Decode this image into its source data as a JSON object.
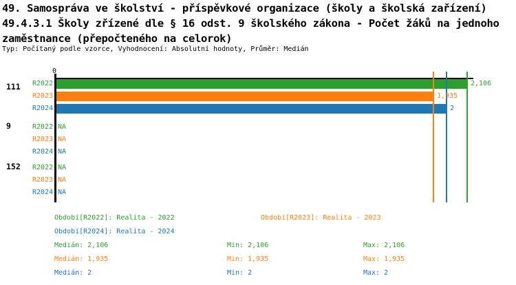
{
  "title": {
    "line1": "49. Samospráva ve školství - příspěvkové organizace (školy a školská zařízení)",
    "line2": "49.4.3.1 Školy zřízené dle § 16 odst. 9 školského zákona - Počet žáků na jednoho",
    "line3": "zaměstnance (přepočteného na celorok)",
    "subtitle": "Typ: Počítaný podle vzorce, Vyhodnocení: Absolutní hodnoty, Průměr: Medián"
  },
  "colors": {
    "green": "#2ca02c",
    "orange": "#ff7f0e",
    "blue": "#1f77b4",
    "axis": "#000000",
    "background": "#ffffff"
  },
  "chart_data": {
    "type": "bar",
    "orientation": "horizontal",
    "xaxis": {
      "zero_label": "0",
      "xlim": [
        0,
        2.14
      ],
      "decimal_separator": "comma"
    },
    "series": [
      {
        "name": "R2022",
        "color": "#2ca02c",
        "period": "Realita - 2022",
        "median": 2.106,
        "min": 2.106,
        "max": 2.106
      },
      {
        "name": "R2023",
        "color": "#ff7f0e",
        "period": "Realita - 2023",
        "median": 1.935,
        "min": 1.935,
        "max": 1.935
      },
      {
        "name": "R2024",
        "color": "#1f77b4",
        "period": "Realita - 2024",
        "median": 2.0,
        "min": 2.0,
        "max": 2.0
      }
    ],
    "groups": [
      {
        "label": "111",
        "values": [
          {
            "series": "R2022",
            "value": 2.106,
            "display": "2,106"
          },
          {
            "series": "R2023",
            "value": 1.935,
            "display": "1,935"
          },
          {
            "series": "R2024",
            "value": 2.0,
            "display": "2"
          }
        ]
      },
      {
        "label": "9",
        "values": [
          {
            "series": "R2022",
            "value": null,
            "display": "NA"
          },
          {
            "series": "R2023",
            "value": null,
            "display": "NA"
          },
          {
            "series": "R2024",
            "value": null,
            "display": "NA"
          }
        ]
      },
      {
        "label": "152",
        "values": [
          {
            "series": "R2022",
            "value": null,
            "display": "NA"
          },
          {
            "series": "R2023",
            "value": null,
            "display": "NA"
          },
          {
            "series": "R2024",
            "value": null,
            "display": "NA"
          }
        ]
      }
    ]
  },
  "legend": {
    "periods": [
      {
        "series": "R2022",
        "label": "Období[R2022]: Realita - 2022"
      },
      {
        "series": "R2023",
        "label": "Období[R2023]: Realita - 2023"
      },
      {
        "series": "R2024",
        "label": "Období[R2024]: Realita - 2024"
      }
    ],
    "stats": [
      {
        "series": "R2022",
        "median": "Medián: 2,106",
        "min": "Min: 2,106",
        "max": "Max: 2,106"
      },
      {
        "series": "R2023",
        "median": "Medián: 1,935",
        "min": "Min: 1,935",
        "max": "Max: 1,935"
      },
      {
        "series": "R2024",
        "median": "Medián: 2",
        "min": "Min: 2",
        "max": "Max: 2"
      }
    ]
  }
}
